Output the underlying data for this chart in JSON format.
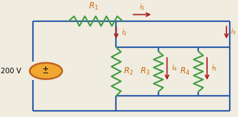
{
  "wire_color": "#2b5ba8",
  "resistor_color": "#3a9a3a",
  "arrow_color": "#aa2020",
  "text_color": "#000000",
  "label_color": "#cc6600",
  "bg_color": "#f0ece0",
  "figsize": [
    3.47,
    1.71
  ],
  "dpi": 100,
  "vs_circle_face": "#f0a830",
  "vs_circle_edge": "#c06020",
  "lw_wire": 1.6,
  "lw_res": 1.5
}
